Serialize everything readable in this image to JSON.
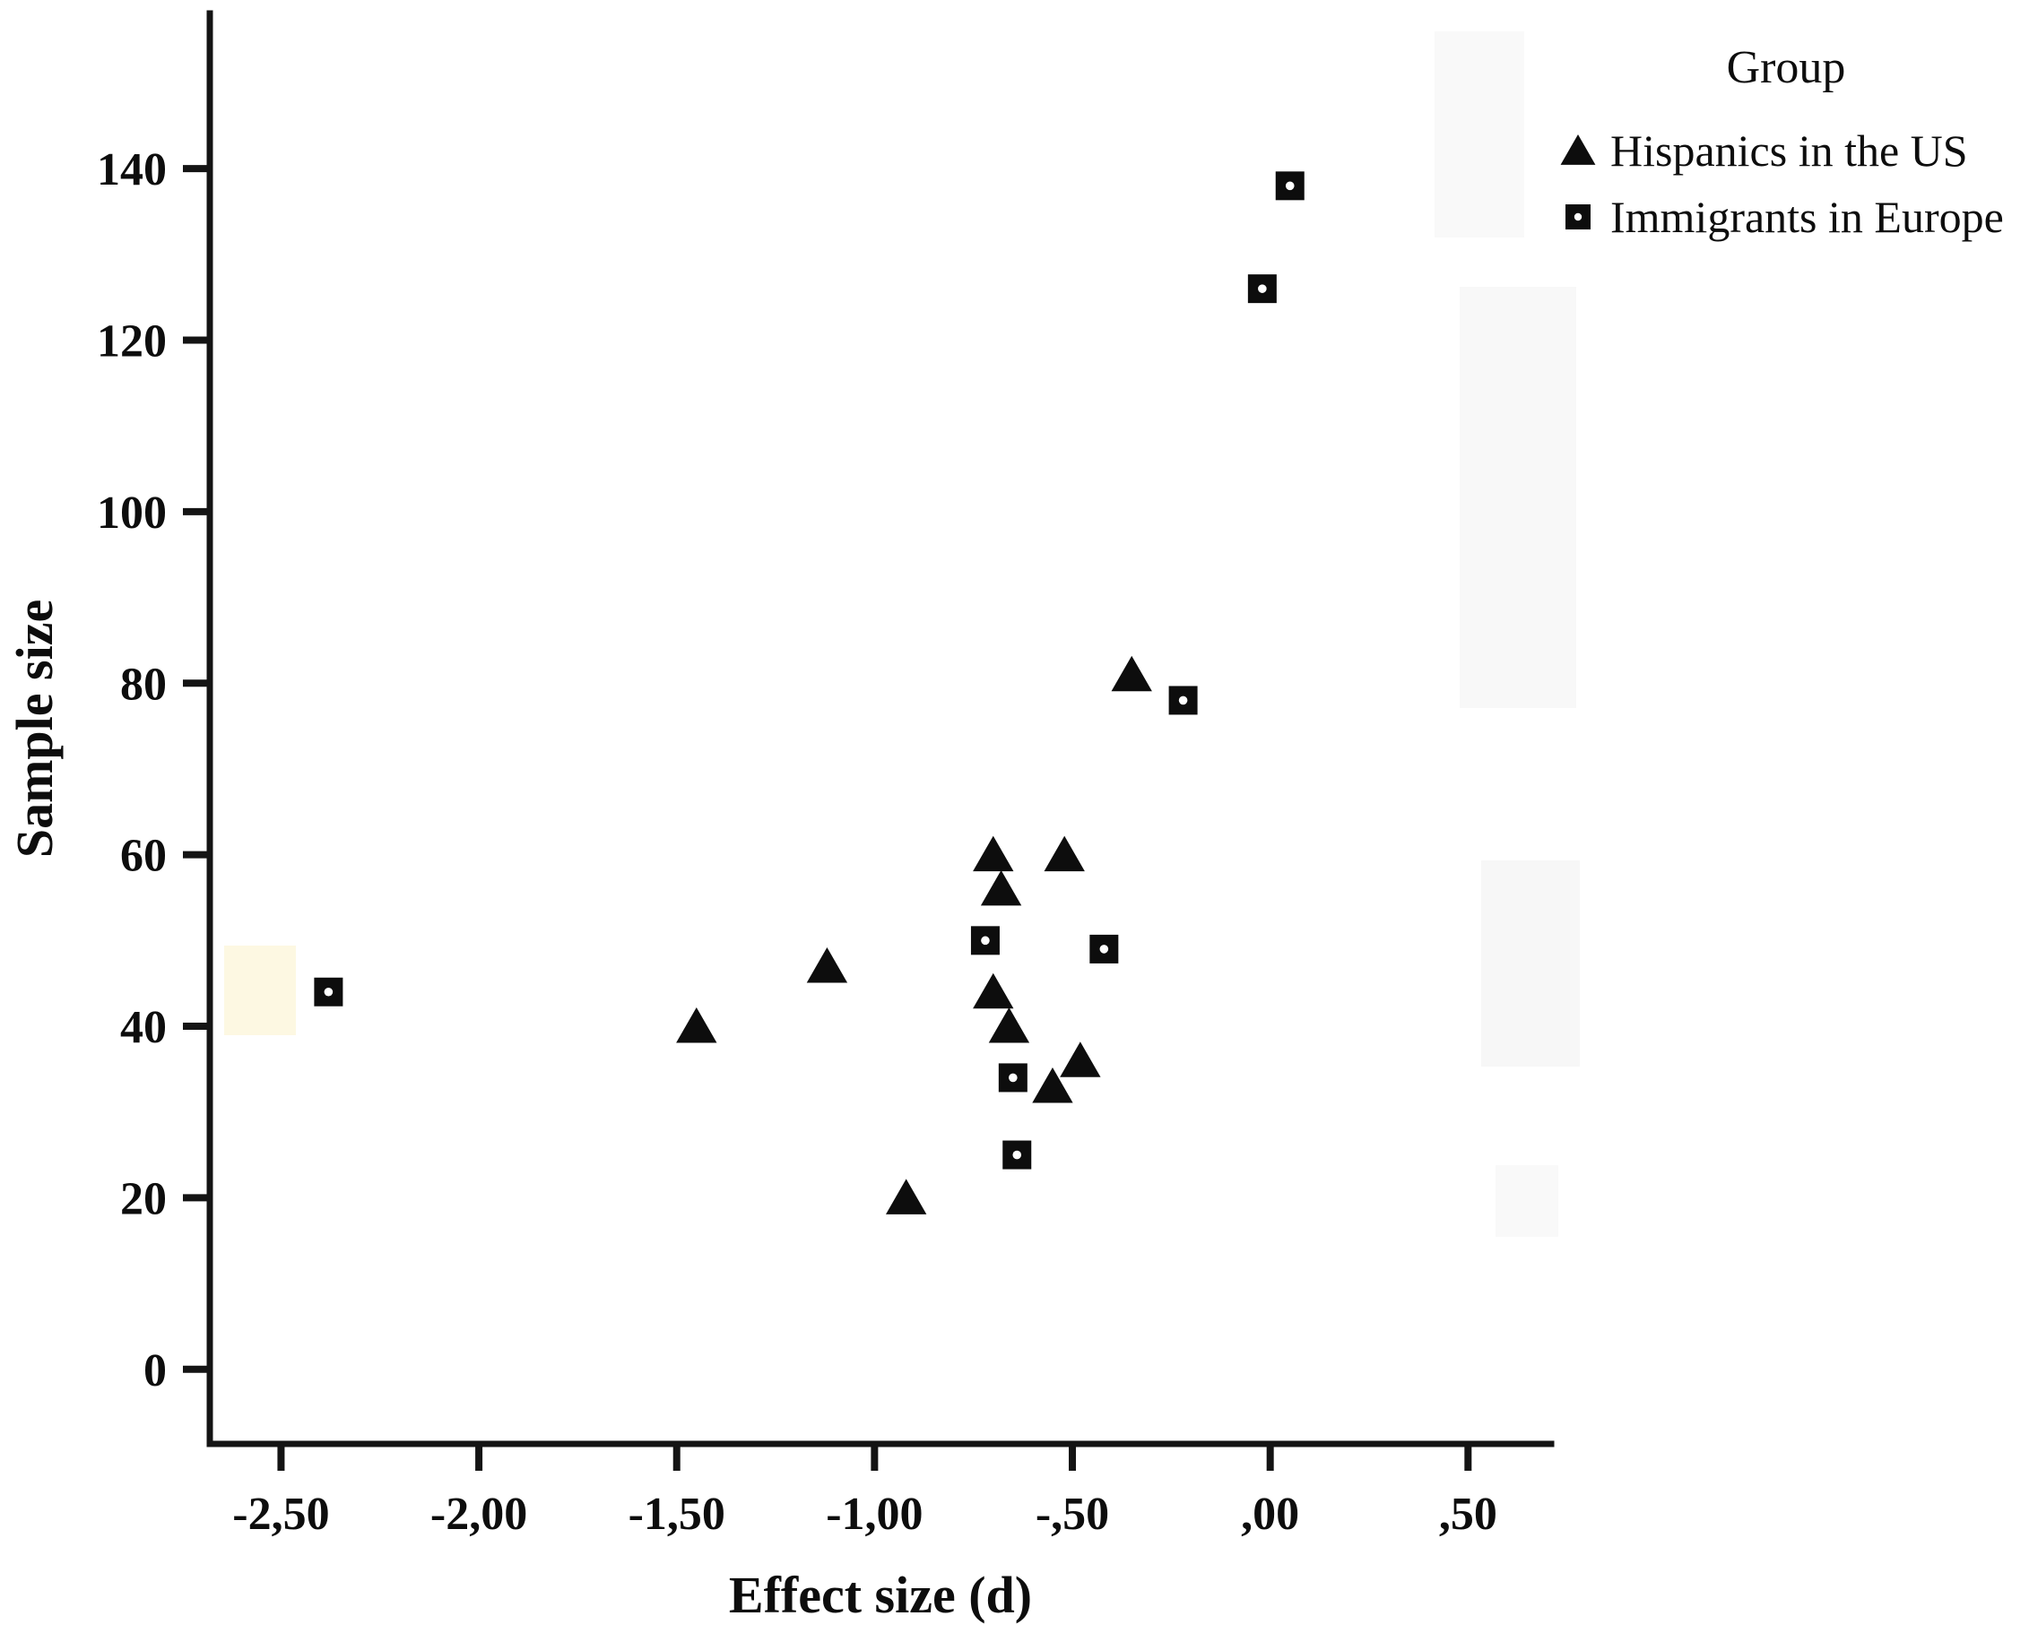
{
  "chart_data": {
    "type": "scatter",
    "title": "",
    "xlabel": "Effect size (d)",
    "ylabel": "Sample size",
    "xlim": [
      -2.68,
      0.71
    ],
    "ylim": [
      -8.7,
      158.1
    ],
    "grid": false,
    "x_ticks": [
      -2.5,
      -2.0,
      -1.5,
      -1.0,
      -0.5,
      0.0,
      0.5
    ],
    "x_tick_labels": [
      "-2,50",
      "-2,00",
      "-1,50",
      "-1,00",
      "-,50",
      ",00",
      ",50"
    ],
    "y_ticks": [
      0,
      20,
      40,
      60,
      80,
      100,
      120,
      140
    ],
    "y_tick_labels": [
      "0",
      "20",
      "40",
      "60",
      "80",
      "100",
      "120",
      "140"
    ],
    "legend": {
      "title": "Group",
      "position": "top-right"
    },
    "marker_color": "#0d0d0d",
    "series": [
      {
        "name": "Hispanics in the US",
        "marker": "triangle",
        "points": [
          [
            -1.45,
            40
          ],
          [
            -1.12,
            47
          ],
          [
            -0.92,
            20
          ],
          [
            -0.7,
            60
          ],
          [
            -0.68,
            56
          ],
          [
            -0.7,
            44
          ],
          [
            -0.66,
            40
          ],
          [
            -0.55,
            33
          ],
          [
            -0.52,
            60
          ],
          [
            -0.48,
            36
          ],
          [
            -0.35,
            81
          ]
        ]
      },
      {
        "name": "Immigrants in Europe",
        "marker": "square-dot",
        "points": [
          [
            -2.38,
            44
          ],
          [
            -0.72,
            50
          ],
          [
            -0.65,
            34
          ],
          [
            -0.64,
            25
          ],
          [
            -0.42,
            49
          ],
          [
            -0.22,
            78
          ],
          [
            -0.02,
            126
          ],
          [
            0.05,
            138
          ]
        ]
      }
    ]
  }
}
